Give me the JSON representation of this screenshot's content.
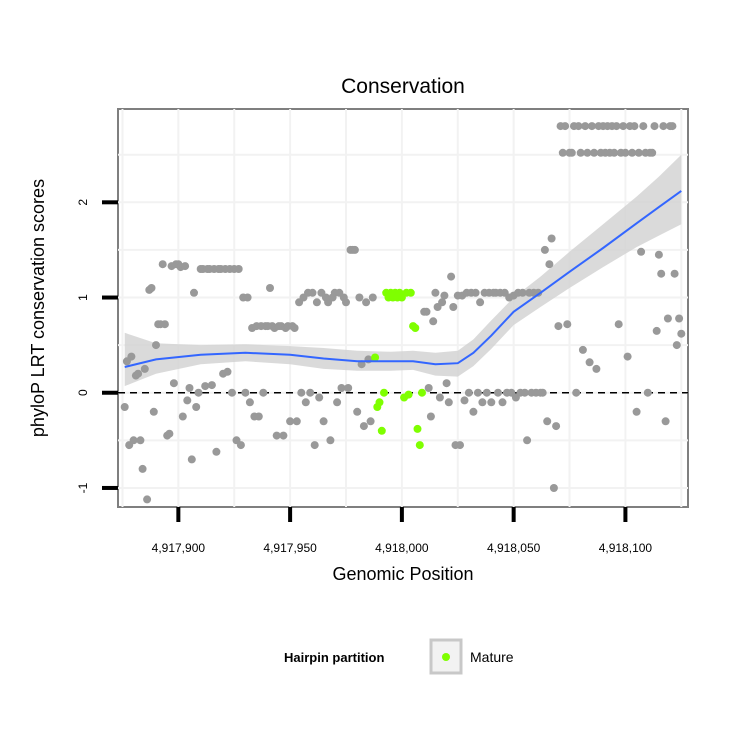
{
  "chart_data": {
    "type": "scatter",
    "title": "Conservation",
    "xlabel": "Genomic Position",
    "ylabel": "phyloP LRT conservation scores",
    "xlim": [
      4917873,
      4918128
    ],
    "ylim": [
      -1.2,
      2.98
    ],
    "x_ticks": [
      4917900,
      4917950,
      4918000,
      4918050,
      4918100
    ],
    "x_tick_labels": [
      "4,917,900",
      "4,917,950",
      "4,918,000",
      "4,918,050",
      "4,918,100"
    ],
    "y_ticks": [
      -1,
      0,
      1,
      2
    ],
    "y_tick_labels": [
      "-1",
      "0",
      "1",
      "2"
    ],
    "reference_line": {
      "y": 0,
      "style": "dashed"
    },
    "legend": {
      "title": "Hairpin partition",
      "position": "bottom",
      "entries": [
        {
          "label": "Mature",
          "color": "#7fff00"
        }
      ]
    },
    "colors": {
      "other": "#999999",
      "mature": "#7fff00",
      "smooth": "#3366ff",
      "band": "#d3d3d3",
      "panel": "#ffffff",
      "grid": "#f2f2f2",
      "border": "#7f7f7f"
    },
    "series": [
      {
        "name": "Other",
        "color": "#999999",
        "points": [
          [
            4917876,
            -0.15
          ],
          [
            4917877,
            0.33
          ],
          [
            4917878,
            -0.55
          ],
          [
            4917879,
            0.38
          ],
          [
            4917880,
            -0.5
          ],
          [
            4917881,
            0.18
          ],
          [
            4917882,
            0.2
          ],
          [
            4917883,
            -0.5
          ],
          [
            4917884,
            -0.8
          ],
          [
            4917885,
            0.25
          ],
          [
            4917886,
            -1.12
          ],
          [
            4917887,
            1.08
          ],
          [
            4917888,
            1.1
          ],
          [
            4917889,
            -0.2
          ],
          [
            4917890,
            0.5
          ],
          [
            4917891,
            0.72
          ],
          [
            4917892,
            0.72
          ],
          [
            4917893,
            1.35
          ],
          [
            4917894,
            0.72
          ],
          [
            4917895,
            -0.45
          ],
          [
            4917896,
            -0.43
          ],
          [
            4917897,
            1.33
          ],
          [
            4917898,
            0.1
          ],
          [
            4917899,
            1.35
          ],
          [
            4917900,
            1.35
          ],
          [
            4917901,
            1.32
          ],
          [
            4917902,
            -0.25
          ],
          [
            4917903,
            1.33
          ],
          [
            4917904,
            -0.08
          ],
          [
            4917905,
            0.05
          ],
          [
            4917906,
            -0.7
          ],
          [
            4917907,
            1.05
          ],
          [
            4917908,
            -0.15
          ],
          [
            4917909,
            0.0
          ],
          [
            4917910,
            1.3
          ],
          [
            4917911,
            1.3
          ],
          [
            4917912,
            0.07
          ],
          [
            4917913,
            1.3
          ],
          [
            4917914,
            1.3
          ],
          [
            4917915,
            0.08
          ],
          [
            4917916,
            1.3
          ],
          [
            4917917,
            -0.62
          ],
          [
            4917918,
            1.3
          ],
          [
            4917919,
            1.3
          ],
          [
            4917920,
            0.2
          ],
          [
            4917921,
            1.3
          ],
          [
            4917922,
            0.22
          ],
          [
            4917923,
            1.3
          ],
          [
            4917924,
            0.0
          ],
          [
            4917925,
            1.3
          ],
          [
            4917926,
            -0.5
          ],
          [
            4917927,
            1.3
          ],
          [
            4917928,
            -0.55
          ],
          [
            4917929,
            1.0
          ],
          [
            4917930,
            0.0
          ],
          [
            4917931,
            1.0
          ],
          [
            4917932,
            -0.1
          ],
          [
            4917933,
            0.68
          ],
          [
            4917934,
            -0.25
          ],
          [
            4917935,
            0.7
          ],
          [
            4917936,
            -0.25
          ],
          [
            4917937,
            0.7
          ],
          [
            4917938,
            0.0
          ],
          [
            4917939,
            0.7
          ],
          [
            4917940,
            0.7
          ],
          [
            4917941,
            1.1
          ],
          [
            4917942,
            0.7
          ],
          [
            4917943,
            0.68
          ],
          [
            4917944,
            -0.45
          ],
          [
            4917945,
            0.7
          ],
          [
            4917946,
            0.7
          ],
          [
            4917947,
            -0.45
          ],
          [
            4917948,
            0.68
          ],
          [
            4917949,
            0.7
          ],
          [
            4917950,
            -0.3
          ],
          [
            4917951,
            0.7
          ],
          [
            4917952,
            0.68
          ],
          [
            4917953,
            -0.3
          ],
          [
            4917954,
            0.95
          ],
          [
            4917955,
            0.0
          ],
          [
            4917956,
            1.0
          ],
          [
            4917957,
            -0.1
          ],
          [
            4917958,
            1.05
          ],
          [
            4917959,
            0.0
          ],
          [
            4917960,
            1.05
          ],
          [
            4917961,
            -0.55
          ],
          [
            4917962,
            0.95
          ],
          [
            4917963,
            -0.05
          ],
          [
            4917964,
            1.05
          ],
          [
            4917965,
            -0.3
          ],
          [
            4917966,
            1.0
          ],
          [
            4917967,
            0.95
          ],
          [
            4917968,
            -0.5
          ],
          [
            4917969,
            1.0
          ],
          [
            4917970,
            1.05
          ],
          [
            4917971,
            -0.1
          ],
          [
            4917972,
            1.05
          ],
          [
            4917973,
            0.05
          ],
          [
            4917974,
            1.0
          ],
          [
            4917975,
            0.95
          ],
          [
            4917976,
            0.05
          ],
          [
            4917977,
            1.5
          ],
          [
            4917978,
            1.5
          ],
          [
            4917979,
            1.5
          ],
          [
            4917980,
            -0.2
          ],
          [
            4917981,
            1.0
          ],
          [
            4917982,
            0.3
          ],
          [
            4917983,
            -0.35
          ],
          [
            4917984,
            0.95
          ],
          [
            4917985,
            0.35
          ],
          [
            4917986,
            -0.3
          ],
          [
            4917987,
            1.0
          ],
          [
            4918010,
            0.85
          ],
          [
            4918011,
            0.85
          ],
          [
            4918012,
            0.05
          ],
          [
            4918013,
            -0.25
          ],
          [
            4918014,
            0.75
          ],
          [
            4918015,
            1.05
          ],
          [
            4918016,
            0.9
          ],
          [
            4918017,
            -0.05
          ],
          [
            4918018,
            0.95
          ],
          [
            4918019,
            1.02
          ],
          [
            4918020,
            0.1
          ],
          [
            4918021,
            -0.1
          ],
          [
            4918022,
            1.22
          ],
          [
            4918023,
            0.9
          ],
          [
            4918024,
            -0.55
          ],
          [
            4918025,
            1.02
          ],
          [
            4918026,
            -0.55
          ],
          [
            4918027,
            1.02
          ],
          [
            4918028,
            -0.08
          ],
          [
            4918029,
            1.05
          ],
          [
            4918030,
            0.0
          ],
          [
            4918031,
            1.05
          ],
          [
            4918032,
            -0.2
          ],
          [
            4918033,
            1.05
          ],
          [
            4918034,
            0.0
          ],
          [
            4918035,
            0.95
          ],
          [
            4918036,
            -0.1
          ],
          [
            4918037,
            1.05
          ],
          [
            4918038,
            0.0
          ],
          [
            4918039,
            1.05
          ],
          [
            4918040,
            -0.1
          ],
          [
            4918041,
            1.05
          ],
          [
            4918042,
            1.05
          ],
          [
            4918043,
            0.0
          ],
          [
            4918044,
            1.05
          ],
          [
            4918045,
            -0.1
          ],
          [
            4918046,
            1.05
          ],
          [
            4918047,
            0.0
          ],
          [
            4918048,
            1.0
          ],
          [
            4918049,
            0.0
          ],
          [
            4918050,
            1.02
          ],
          [
            4918051,
            -0.05
          ],
          [
            4918052,
            1.05
          ],
          [
            4918053,
            0.0
          ],
          [
            4918054,
            1.05
          ],
          [
            4918055,
            0.0
          ],
          [
            4918056,
            -0.5
          ],
          [
            4918057,
            1.05
          ],
          [
            4918058,
            0.0
          ],
          [
            4918059,
            1.05
          ],
          [
            4918060,
            0.0
          ],
          [
            4918061,
            1.05
          ],
          [
            4918062,
            0.0
          ],
          [
            4918063,
            0.0
          ],
          [
            4918064,
            1.5
          ],
          [
            4918065,
            -0.3
          ],
          [
            4918066,
            1.35
          ],
          [
            4918067,
            1.62
          ],
          [
            4918068,
            -1.0
          ],
          [
            4918069,
            -0.35
          ],
          [
            4918070,
            0.7
          ],
          [
            4918071,
            2.8
          ],
          [
            4918072,
            2.52
          ],
          [
            4918073,
            2.8
          ],
          [
            4918074,
            0.72
          ],
          [
            4918075,
            2.52
          ],
          [
            4918076,
            2.52
          ],
          [
            4918077,
            2.8
          ],
          [
            4918078,
            0.0
          ],
          [
            4918079,
            2.8
          ],
          [
            4918080,
            2.52
          ],
          [
            4918081,
            0.45
          ],
          [
            4918082,
            2.8
          ],
          [
            4918083,
            2.52
          ],
          [
            4918084,
            0.32
          ],
          [
            4918085,
            2.8
          ],
          [
            4918086,
            2.52
          ],
          [
            4918087,
            0.25
          ],
          [
            4918088,
            2.8
          ],
          [
            4918089,
            2.52
          ],
          [
            4918090,
            2.8
          ],
          [
            4918091,
            2.52
          ],
          [
            4918092,
            2.8
          ],
          [
            4918093,
            2.52
          ],
          [
            4918094,
            2.8
          ],
          [
            4918095,
            2.52
          ],
          [
            4918096,
            2.8
          ],
          [
            4918097,
            0.72
          ],
          [
            4918098,
            2.52
          ],
          [
            4918099,
            2.8
          ],
          [
            4918100,
            2.52
          ],
          [
            4918101,
            0.38
          ],
          [
            4918102,
            2.8
          ],
          [
            4918103,
            2.52
          ],
          [
            4918104,
            2.8
          ],
          [
            4918105,
            -0.2
          ],
          [
            4918106,
            2.52
          ],
          [
            4918107,
            1.48
          ],
          [
            4918108,
            2.8
          ],
          [
            4918109,
            2.52
          ],
          [
            4918110,
            0.0
          ],
          [
            4918111,
            2.52
          ],
          [
            4918112,
            2.52
          ],
          [
            4918113,
            2.8
          ],
          [
            4918114,
            0.65
          ],
          [
            4918115,
            1.45
          ],
          [
            4918116,
            1.25
          ],
          [
            4918117,
            2.8
          ],
          [
            4918118,
            -0.3
          ],
          [
            4918119,
            0.78
          ],
          [
            4918120,
            2.8
          ],
          [
            4918121,
            2.8
          ],
          [
            4918122,
            1.25
          ],
          [
            4918123,
            0.5
          ],
          [
            4918124,
            0.78
          ],
          [
            4918125,
            0.62
          ]
        ]
      },
      {
        "name": "Mature",
        "color": "#7fff00",
        "points": [
          [
            4917988,
            0.37
          ],
          [
            4917989,
            -0.15
          ],
          [
            4917990,
            -0.1
          ],
          [
            4917991,
            -0.4
          ],
          [
            4917992,
            0.0
          ],
          [
            4917993,
            1.05
          ],
          [
            4917994,
            1.0
          ],
          [
            4917995,
            1.05
          ],
          [
            4917996,
            1.0
          ],
          [
            4917997,
            1.05
          ],
          [
            4917998,
            1.0
          ],
          [
            4917999,
            1.05
          ],
          [
            4918000,
            1.0
          ],
          [
            4918001,
            -0.05
          ],
          [
            4918002,
            1.05
          ],
          [
            4918003,
            -0.02
          ],
          [
            4918004,
            1.05
          ],
          [
            4918005,
            0.7
          ],
          [
            4918006,
            0.68
          ],
          [
            4918007,
            -0.38
          ],
          [
            4918008,
            -0.55
          ],
          [
            4918009,
            0.0
          ]
        ]
      }
    ],
    "smooth": {
      "name": "LOESS fit",
      "x": [
        4917876,
        4917890,
        4917910,
        4917930,
        4917950,
        4917965,
        4917980,
        4917995,
        4918005,
        4918015,
        4918025,
        4918032,
        4918040,
        4918050,
        4918062,
        4918075,
        4918090,
        4918105,
        4918115,
        4918125
      ],
      "y": [
        0.27,
        0.35,
        0.4,
        0.42,
        0.4,
        0.36,
        0.33,
        0.33,
        0.33,
        0.3,
        0.31,
        0.42,
        0.6,
        0.85,
        1.05,
        1.27,
        1.52,
        1.78,
        1.95,
        2.12
      ],
      "band_low": [
        0.07,
        0.2,
        0.3,
        0.33,
        0.3,
        0.25,
        0.23,
        0.23,
        0.24,
        0.18,
        0.17,
        0.28,
        0.46,
        0.71,
        0.9,
        1.1,
        1.32,
        1.53,
        1.65,
        1.77
      ],
      "band_high": [
        0.63,
        0.52,
        0.5,
        0.51,
        0.49,
        0.47,
        0.44,
        0.43,
        0.44,
        0.42,
        0.44,
        0.56,
        0.76,
        1.0,
        1.22,
        1.48,
        1.77,
        2.06,
        2.27,
        2.5
      ]
    }
  }
}
